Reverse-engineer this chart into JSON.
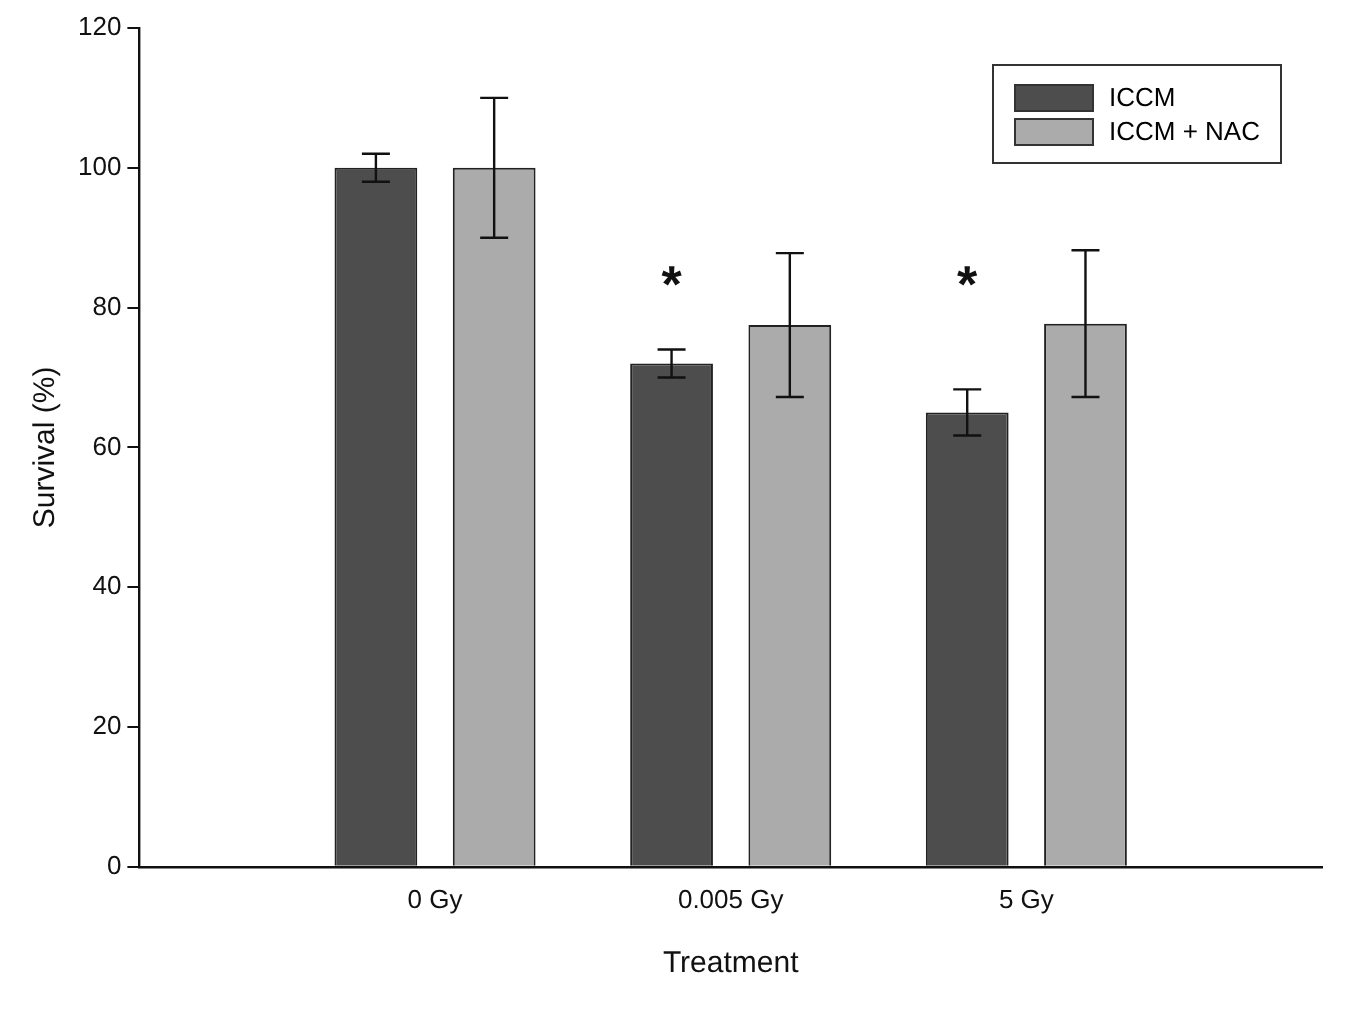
{
  "chart_data": {
    "type": "bar",
    "xlabel": "Treatment",
    "ylabel": "Survival (%)",
    "categories": [
      "0 Gy",
      "0.005 Gy",
      "5 Gy"
    ],
    "series": [
      {
        "name": "ICCM",
        "color": "#4d4d4d",
        "values": [
          100,
          72,
          65
        ],
        "errors": [
          2,
          2,
          3.3
        ]
      },
      {
        "name": "ICCM + NAC",
        "color": "#ababab",
        "values": [
          100,
          77.5,
          77.7
        ],
        "errors": [
          10,
          10.3,
          10.5
        ]
      }
    ],
    "ylim": [
      0,
      120
    ],
    "yticks": [
      0,
      20,
      40,
      60,
      80,
      100,
      120
    ],
    "grid": false,
    "legend": "top right",
    "annotations": [
      "*",
      "*"
    ]
  }
}
